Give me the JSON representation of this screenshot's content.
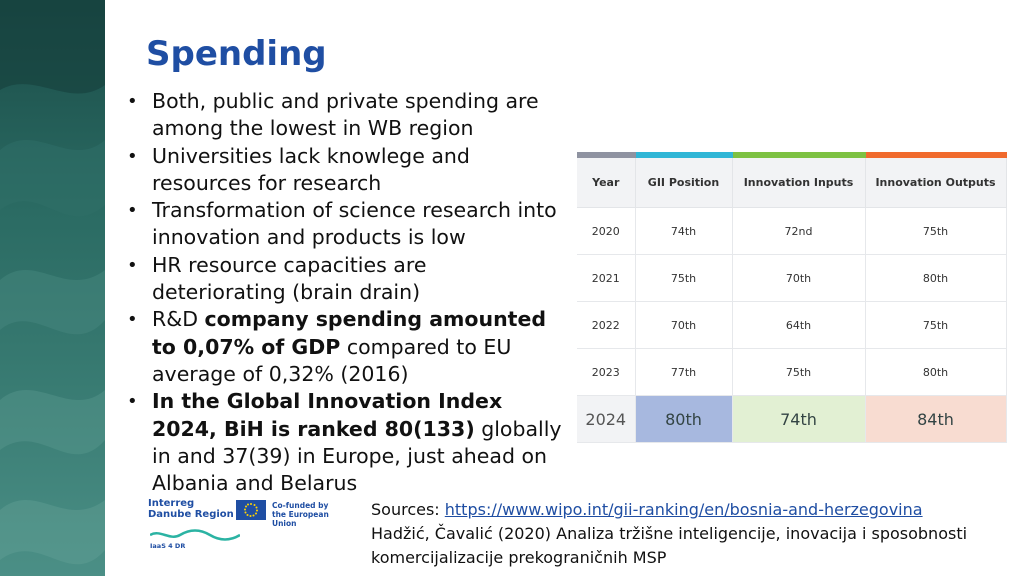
{
  "slide": {
    "title": "Spending"
  },
  "bullets": [
    {
      "parts": [
        {
          "text": "Both, public and private spending are among the lowest in WB region",
          "bold": false
        }
      ]
    },
    {
      "parts": [
        {
          "text": "Universities lack knowlege and resources for research",
          "bold": false
        }
      ]
    },
    {
      "parts": [
        {
          "text": "Transformation of science research into innovation and products is low",
          "bold": false
        }
      ]
    },
    {
      "parts": [
        {
          "text": "HR resource capacities are deteriorating (brain drain)",
          "bold": false
        }
      ]
    },
    {
      "parts": [
        {
          "text": "R&D ",
          "bold": false
        },
        {
          "text": "company spending amounted to 0,07% of GDP",
          "bold": true
        },
        {
          "text": " compared to EU average of 0,32% (2016)",
          "bold": false
        }
      ]
    },
    {
      "parts": [
        {
          "text": "In the Global Innovation Index 2024, BiH is ranked 80(133)",
          "bold": true
        },
        {
          "text": " globally in and 37(39) in Europe, just ahead on Albania and Belarus",
          "bold": false
        }
      ]
    }
  ],
  "table": {
    "headers": [
      "Year",
      "GII Position",
      "Innovation Inputs",
      "Innovation Outputs"
    ],
    "header_colors": [
      "#8f93a1",
      "#30b6d6",
      "#7dc142",
      "#f06a2d"
    ],
    "rows": [
      [
        "2020",
        "74th",
        "72nd",
        "75th"
      ],
      [
        "2021",
        "75th",
        "70th",
        "80th"
      ],
      [
        "2022",
        "70th",
        "64th",
        "75th"
      ],
      [
        "2023",
        "77th",
        "75th",
        "80th"
      ]
    ],
    "highlight_row": [
      "2024",
      "80th",
      "74th",
      "84th"
    ]
  },
  "logos": {
    "interreg_line1": "Interreg",
    "interreg_line2": "Danube Region",
    "eu_line1": "Co-funded by",
    "eu_line2": "the European Union",
    "project": "IaaS 4 DR"
  },
  "sources": {
    "label": "Sources: ",
    "link": "https://www.wipo.int/gii-ranking/en/bosnia-and-herzegovina",
    "line2": "Hadžić, Čavalić (2020) Analiza tržišne inteligencije, inovacija i sposobnosti komercijalizacije prekograničnih MSP"
  }
}
